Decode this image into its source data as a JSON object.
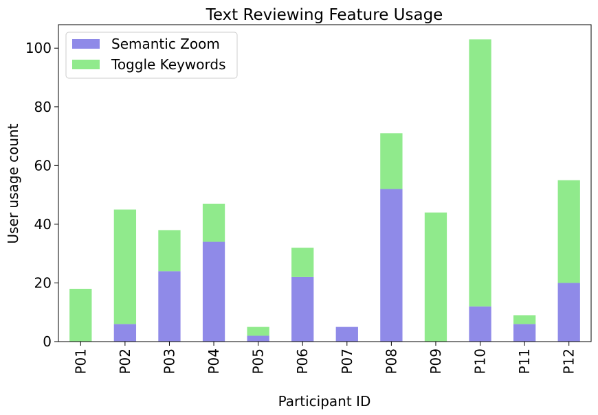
{
  "chart_data": {
    "type": "bar",
    "stacked": true,
    "title": "Text Reviewing Feature Usage",
    "xlabel": "Participant ID",
    "ylabel": "User usage count",
    "categories": [
      "P01",
      "P02",
      "P03",
      "P04",
      "P05",
      "P06",
      "P07",
      "P08",
      "P09",
      "P10",
      "P11",
      "P12"
    ],
    "series": [
      {
        "name": "Semantic Zoom",
        "color": "#8f8ae8",
        "values": [
          0,
          6,
          24,
          34,
          2,
          22,
          5,
          52,
          0,
          12,
          6,
          20
        ]
      },
      {
        "name": "Toggle Keywords",
        "color": "#90ea8c",
        "values": [
          18,
          39,
          14,
          13,
          3,
          10,
          0,
          19,
          44,
          91,
          3,
          35
        ]
      }
    ],
    "ylim": [
      0,
      108
    ],
    "yticks": [
      0,
      20,
      40,
      60,
      80,
      100
    ],
    "grid": false,
    "legend": "top-left"
  }
}
